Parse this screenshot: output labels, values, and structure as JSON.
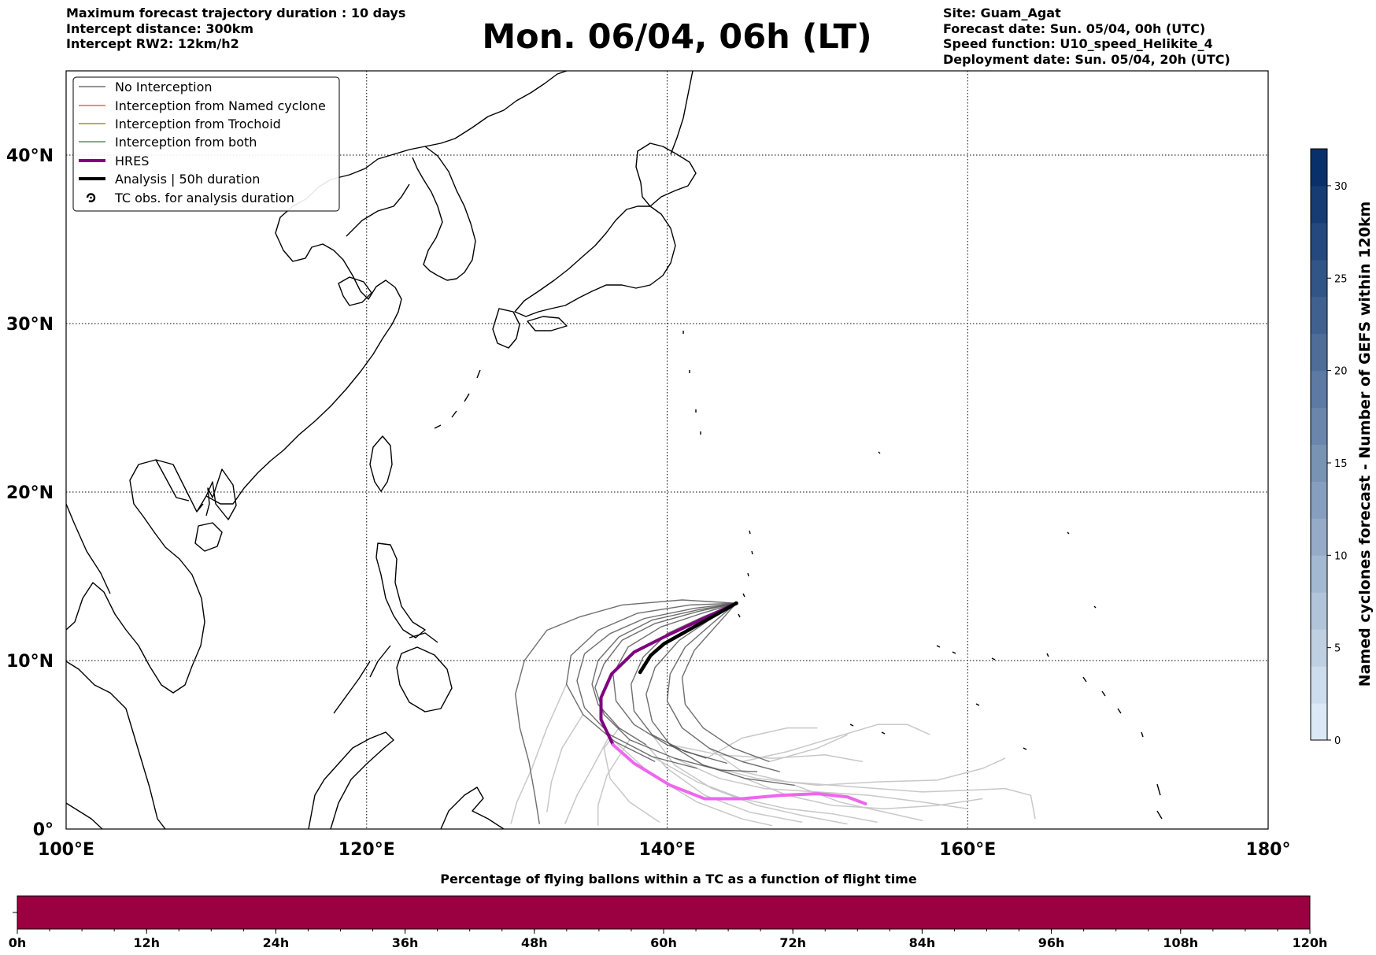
{
  "header": {
    "left_lines": [
      "Maximum forecast trajectory duration : 10 days",
      "Intercept distance: 300km",
      "Intercept RW2: 12km/h2"
    ],
    "title": "Mon. 06/04, 06h (LT)",
    "right_lines": [
      "Site: Guam_Agat",
      "Forecast date: Sun. 05/04, 00h (UTC)",
      "Speed function: U10_speed_Helikite_4",
      "Deployment date: Sun. 05/04, 20h (UTC)"
    ]
  },
  "legend": {
    "placement": "top-left",
    "items": [
      {
        "label": "No Interception",
        "color": "#555555",
        "style": "thin-line"
      },
      {
        "label": "Interception from Named cyclone",
        "color": "#ff4500",
        "style": "thin-line"
      },
      {
        "label": "Interception from Trochoid",
        "color": "#808000",
        "style": "thin-line"
      },
      {
        "label": "Interception from both",
        "color": "#228b22",
        "style": "thin-line"
      },
      {
        "label": "HRES",
        "color": "#800080",
        "style": "thick-line"
      },
      {
        "label": "Analysis | 50h duration",
        "color": "#000000",
        "style": "thick-line"
      },
      {
        "label": "TC obs. for analysis duration",
        "color": "#000000",
        "style": "cyclone-symbol",
        "icon": "cyclone-icon"
      }
    ]
  },
  "chart_data": [
    {
      "type": "map",
      "projection": "plate-carree",
      "xlim": [
        100,
        180
      ],
      "ylim": [
        0,
        45
      ],
      "x_ticks": [
        100,
        120,
        140,
        160,
        180
      ],
      "x_tick_labels": [
        "100°E",
        "120°E",
        "140°E",
        "160°E",
        "180°"
      ],
      "y_ticks": [
        0,
        10,
        20,
        30,
        40
      ],
      "y_tick_labels": [
        "0°",
        "10°N",
        "20°N",
        "30°N",
        "40°N"
      ],
      "grid": "dotted",
      "launch_site": {
        "lon": 144.6,
        "lat": 13.4
      },
      "hres_track": [
        [
          144.6,
          13.4
        ],
        [
          142.2,
          12.4
        ],
        [
          139.8,
          11.4
        ],
        [
          137.8,
          10.5
        ],
        [
          136.3,
          9.2
        ],
        [
          135.6,
          7.8
        ],
        [
          135.6,
          6.5
        ],
        [
          136.4,
          5.0
        ],
        [
          137.8,
          3.9
        ],
        [
          140.2,
          2.6
        ],
        [
          142.5,
          1.8
        ],
        [
          145.0,
          1.8
        ],
        [
          147.5,
          2.0
        ],
        [
          150.0,
          2.1
        ],
        [
          152.0,
          1.9
        ],
        [
          153.2,
          1.5
        ]
      ],
      "analysis_track": [
        [
          144.6,
          13.4
        ],
        [
          143.0,
          12.6
        ],
        [
          141.2,
          11.7
        ],
        [
          139.8,
          11.0
        ],
        [
          138.9,
          10.3
        ],
        [
          138.2,
          9.3
        ]
      ],
      "ensemble_tracks_dark": [
        [
          [
            144.6,
            13.4
          ],
          [
            141.8,
            13.1
          ],
          [
            138.5,
            12.5
          ],
          [
            136.2,
            11.6
          ],
          [
            134.5,
            10.4
          ],
          [
            134.0,
            8.8
          ],
          [
            134.5,
            7.2
          ],
          [
            136.2,
            5.6
          ],
          [
            139.0,
            4.3
          ],
          [
            142.0,
            3.6
          ]
        ],
        [
          [
            144.6,
            13.4
          ],
          [
            142.0,
            12.9
          ],
          [
            139.2,
            12.2
          ],
          [
            137.0,
            11.2
          ],
          [
            135.8,
            9.8
          ],
          [
            135.2,
            8.4
          ],
          [
            135.8,
            6.8
          ],
          [
            137.5,
            5.3
          ],
          [
            140.5,
            4.2
          ],
          [
            143.5,
            3.5
          ],
          [
            146.0,
            3.4
          ]
        ],
        [
          [
            144.6,
            13.4
          ],
          [
            142.4,
            12.6
          ],
          [
            140.0,
            11.6
          ],
          [
            138.4,
            10.2
          ],
          [
            137.6,
            8.6
          ],
          [
            137.8,
            7.0
          ],
          [
            139.0,
            5.6
          ],
          [
            141.2,
            4.6
          ],
          [
            144.0,
            3.9
          ]
        ],
        [
          [
            144.6,
            13.4
          ],
          [
            143.0,
            12.2
          ],
          [
            141.2,
            10.8
          ],
          [
            140.2,
            9.2
          ],
          [
            140.0,
            7.6
          ],
          [
            141.0,
            6.0
          ],
          [
            142.8,
            4.8
          ],
          [
            145.0,
            4.0
          ],
          [
            147.5,
            3.4
          ]
        ],
        [
          [
            144.6,
            13.4
          ],
          [
            141.5,
            13.3
          ],
          [
            138.0,
            12.8
          ],
          [
            135.4,
            11.8
          ],
          [
            133.6,
            10.3
          ],
          [
            133.3,
            8.6
          ],
          [
            134.4,
            6.8
          ],
          [
            136.5,
            5.2
          ],
          [
            139.2,
            4.0
          ]
        ],
        [
          [
            144.6,
            13.4
          ],
          [
            142.3,
            12.8
          ],
          [
            139.6,
            12.0
          ],
          [
            137.4,
            10.8
          ],
          [
            136.4,
            9.2
          ],
          [
            136.6,
            7.6
          ],
          [
            137.8,
            6.2
          ],
          [
            140.0,
            5.0
          ],
          [
            142.6,
            4.2
          ]
        ],
        [
          [
            144.6,
            13.4
          ],
          [
            142.8,
            12.4
          ],
          [
            140.8,
            11.2
          ],
          [
            139.2,
            9.6
          ],
          [
            138.6,
            8.0
          ],
          [
            139.0,
            6.4
          ],
          [
            140.2,
            5.0
          ],
          [
            142.4,
            3.8
          ],
          [
            145.2,
            3.0
          ],
          [
            148.5,
            2.6
          ]
        ],
        [
          [
            144.6,
            13.4
          ],
          [
            142.0,
            13.0
          ],
          [
            139.0,
            12.4
          ],
          [
            136.8,
            11.4
          ],
          [
            135.4,
            10.0
          ],
          [
            135.0,
            8.6
          ],
          [
            135.4,
            7.4
          ],
          [
            136.8,
            6.0
          ],
          [
            138.6,
            5.0
          ]
        ],
        [
          [
            144.6,
            13.4
          ],
          [
            143.2,
            12.0
          ],
          [
            141.8,
            10.6
          ],
          [
            141.0,
            9.0
          ],
          [
            141.2,
            7.4
          ],
          [
            142.4,
            6.0
          ],
          [
            144.4,
            4.8
          ],
          [
            146.8,
            4.0
          ]
        ],
        [
          [
            144.6,
            13.4
          ],
          [
            141.0,
            13.6
          ],
          [
            137.0,
            13.3
          ],
          [
            134.2,
            12.6
          ],
          [
            132.0,
            11.8
          ],
          [
            130.5,
            10.0
          ],
          [
            129.9,
            8.0
          ],
          [
            130.2,
            6.0
          ],
          [
            130.8,
            4.0
          ],
          [
            131.2,
            2.0
          ],
          [
            131.5,
            0.3
          ]
        ]
      ],
      "ensemble_tracks_light": [
        [
          [
            136.2,
            5.6
          ],
          [
            135.0,
            3.6
          ],
          [
            134.0,
            2.0
          ],
          [
            133.2,
            0.3
          ]
        ],
        [
          [
            139.0,
            4.3
          ],
          [
            142.0,
            2.8
          ],
          [
            145.0,
            1.8
          ],
          [
            148.0,
            1.2
          ],
          [
            151.0,
            0.9
          ],
          [
            154.0,
            0.4
          ]
        ],
        [
          [
            137.5,
            5.3
          ],
          [
            136.0,
            3.2
          ],
          [
            135.4,
            1.4
          ],
          [
            135.4,
            0.2
          ]
        ],
        [
          [
            140.5,
            4.2
          ],
          [
            143.5,
            3.0
          ],
          [
            146.5,
            2.4
          ],
          [
            150.0,
            2.2
          ],
          [
            153.5,
            2.0
          ],
          [
            157.0,
            1.6
          ],
          [
            160.0,
            1.2
          ]
        ],
        [
          [
            139.0,
            5.6
          ],
          [
            140.5,
            3.8
          ],
          [
            143.0,
            2.4
          ],
          [
            146.0,
            1.4
          ],
          [
            149.0,
            0.8
          ],
          [
            152.0,
            0.3
          ]
        ],
        [
          [
            142.8,
            4.8
          ],
          [
            145.0,
            3.4
          ],
          [
            148.0,
            2.8
          ],
          [
            151.0,
            2.6
          ],
          [
            154.0,
            2.4
          ],
          [
            157.0,
            2.2
          ],
          [
            160.0,
            2.3
          ],
          [
            162.5,
            2.4
          ],
          [
            164.2,
            2.0
          ],
          [
            164.5,
            0.6
          ]
        ],
        [
          [
            145.0,
            4.0
          ],
          [
            148.0,
            4.6
          ],
          [
            151.0,
            5.4
          ],
          [
            154.0,
            6.2
          ],
          [
            156.0,
            6.2
          ],
          [
            157.5,
            5.6
          ]
        ],
        [
          [
            133.3,
            8.6
          ],
          [
            132.0,
            6.0
          ],
          [
            131.0,
            3.6
          ],
          [
            130.0,
            1.6
          ],
          [
            129.6,
            0.3
          ]
        ],
        [
          [
            136.5,
            5.2
          ],
          [
            139.0,
            3.2
          ],
          [
            142.0,
            1.6
          ],
          [
            145.0,
            0.6
          ],
          [
            147.0,
            0.2
          ]
        ],
        [
          [
            140.2,
            5.0
          ],
          [
            143.5,
            4.4
          ],
          [
            147.0,
            4.2
          ],
          [
            150.5,
            4.4
          ],
          [
            153.0,
            4.0
          ]
        ],
        [
          [
            142.4,
            3.8
          ],
          [
            146.0,
            3.0
          ],
          [
            150.0,
            2.6
          ],
          [
            154.0,
            2.8
          ],
          [
            158.0,
            2.9
          ],
          [
            161.0,
            3.6
          ],
          [
            162.5,
            4.2
          ]
        ],
        [
          [
            138.6,
            5.0
          ],
          [
            140.0,
            3.6
          ],
          [
            142.5,
            2.0
          ],
          [
            145.5,
            1.0
          ],
          [
            149.0,
            0.4
          ]
        ],
        [
          [
            146.8,
            4.0
          ],
          [
            150.0,
            4.8
          ],
          [
            152.0,
            5.6
          ]
        ],
        [
          [
            136.8,
            6.0
          ],
          [
            135.8,
            4.8
          ],
          [
            136.2,
            3.0
          ],
          [
            137.5,
            1.6
          ],
          [
            139.5,
            0.4
          ]
        ],
        [
          [
            148.5,
            2.6
          ],
          [
            151.5,
            1.6
          ],
          [
            154.5,
            1.0
          ],
          [
            157.0,
            0.5
          ]
        ],
        [
          [
            145.2,
            3.0
          ],
          [
            148.0,
            2.0
          ],
          [
            151.0,
            1.4
          ],
          [
            154.5,
            1.2
          ],
          [
            158.0,
            1.4
          ],
          [
            161.0,
            1.8
          ]
        ],
        [
          [
            142.6,
            4.2
          ],
          [
            145.0,
            5.4
          ],
          [
            148.0,
            6.0
          ],
          [
            150.0,
            6.0
          ]
        ],
        [
          [
            134.4,
            6.8
          ],
          [
            133.0,
            4.8
          ],
          [
            132.3,
            2.8
          ],
          [
            132.0,
            1.0
          ]
        ]
      ]
    },
    {
      "type": "colorbar",
      "label": "Named cyclones forecast - Number of GEFS within 120km",
      "range": [
        0,
        32
      ],
      "ticks": [
        0,
        5,
        10,
        15,
        20,
        25,
        30
      ],
      "levels": 16,
      "color_low": "#dbe9f6",
      "color_high": "#08306b"
    },
    {
      "type": "bar",
      "title": "Percentage of flying ballons within a TC as a function of flight time",
      "x_range": [
        0,
        120
      ],
      "x_ticks": [
        0,
        12,
        24,
        36,
        48,
        60,
        72,
        84,
        96,
        108,
        120
      ],
      "x_tick_labels": [
        "0h",
        "12h",
        "24h",
        "36h",
        "48h",
        "60h",
        "72h",
        "84h",
        "96h",
        "108h",
        "120h"
      ],
      "minor_tick_step": 3,
      "fill_color": "#9b0040"
    }
  ]
}
